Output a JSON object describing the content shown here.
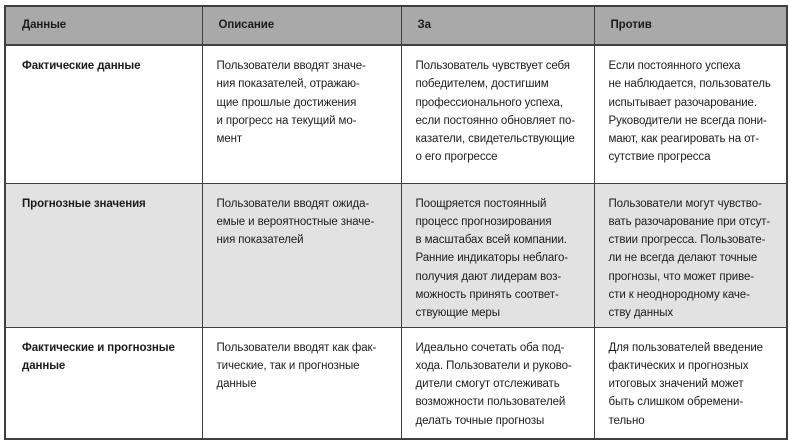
{
  "table": {
    "headers": {
      "data": "Данные",
      "description": "Описание",
      "pros": "За",
      "cons": "Против"
    },
    "rows": [
      {
        "name": "Фактические данные",
        "description": "Пользователи вводят значе-\nния показателей, отражаю-\nщие прошлые достижения\nи прогресс на текущий мо-\nмент",
        "pros": "Пользователь чувствует себя\nпобедителем, достигшим\nпрофессионального успеха,\nесли постоянно обновляет по-\nказатели, свидетельствующие\nо его прогрессе",
        "cons": "Если постоянного успеха\nне наблюдается, пользователь\nиспытывает разочарование.\nРуководители не всегда пони-\nмают, как реагировать на от-\nсутствие прогресса"
      },
      {
        "name": "Прогнозные значения",
        "description": "Пользователи вводят ожида-\nемые и вероятностные значе-\nния показателей",
        "pros": "Поощряется постоянный\nпроцесс прогнозирования\nв масштабах всей компании.\nРанние индикаторы неблаго-\nполучия дают лидерам воз-\nможность принять соответ-\nствующие меры",
        "cons": "Пользователи могут чувство-\nвать разочарование при отсут-\nствии прогресса. Пользовате-\nли не всегда делают точные\nпрогнозы, что может приве-\nсти к неоднородному каче-\nству данных"
      },
      {
        "name": "Фактические и прогнозные\nданные",
        "description": "Пользователи вводят как фак-\nтические, так и прогнозные\nданные",
        "pros": "Идеально сочетать оба под-\nхода. Пользователи и руково-\nдители смогут отслеживать\nвозможности пользователей\nделать точные прогнозы",
        "cons": "Для пользователей введение\nфактических и прогнозных\nитоговых значений может\nбыть слишком обремени-\nтельно"
      }
    ],
    "colors": {
      "header_bg": "#a9a9a9",
      "alt_row_bg": "#e2e2e2",
      "row_bg": "#ffffff",
      "border": "#3f3f3f",
      "text": "#1c1c1c"
    }
  }
}
